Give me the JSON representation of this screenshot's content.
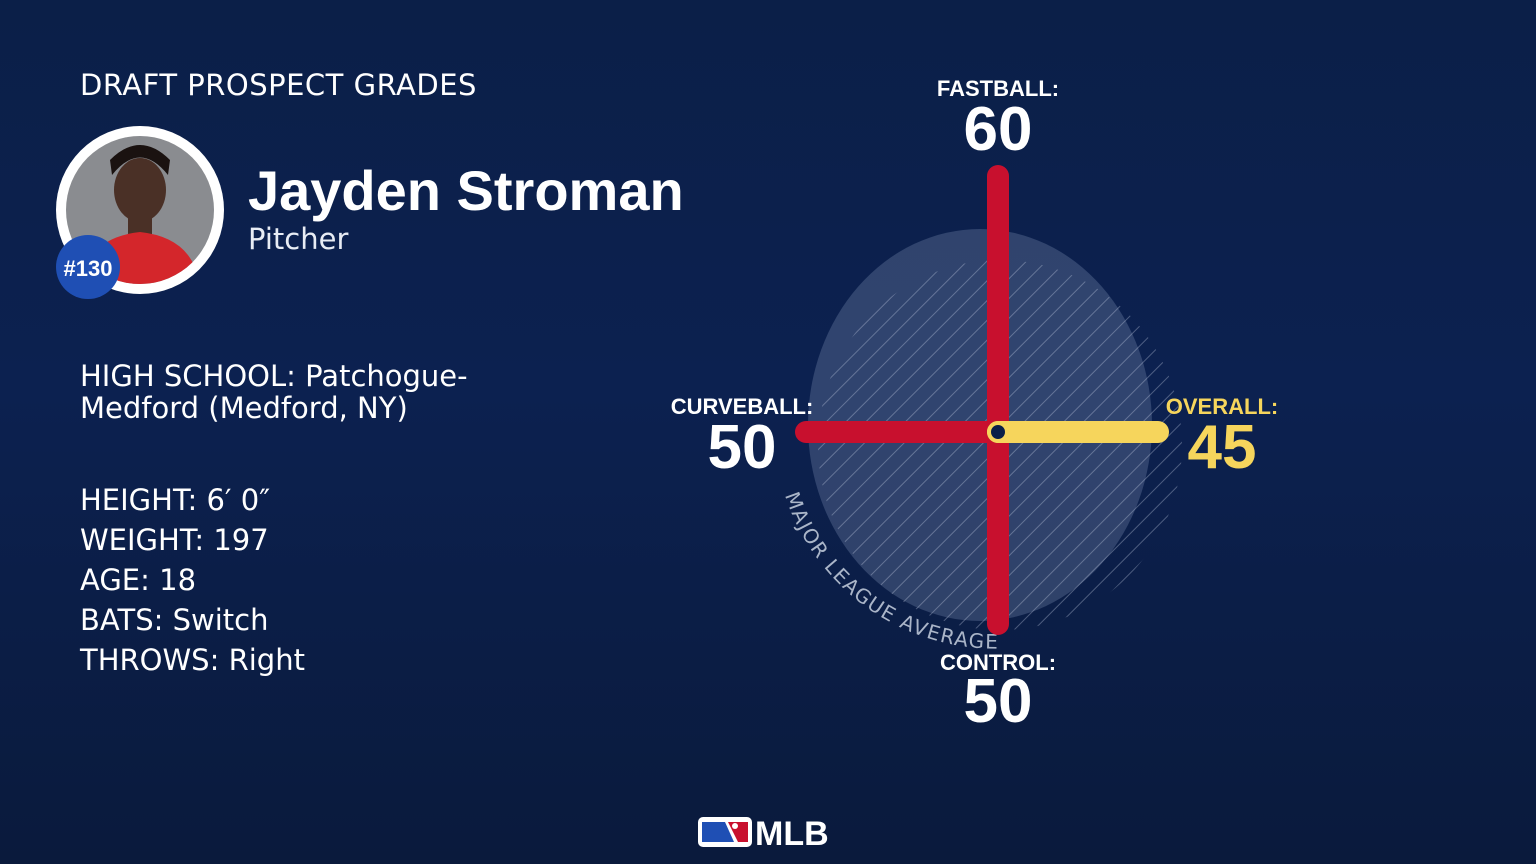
{
  "header": {
    "title": "DRAFT PROSPECT GRADES"
  },
  "player": {
    "name": "Jayden Stroman",
    "position": "Pitcher",
    "rank": "#130",
    "school": {
      "label": "HIGH SCHOOL:",
      "value": "Patchogue-Medford (Medford, NY)"
    },
    "details": [
      {
        "label": "HEIGHT:",
        "value": "6′ 0″"
      },
      {
        "label": "WEIGHT:",
        "value": "197"
      },
      {
        "label": "AGE:",
        "value": "18"
      },
      {
        "label": "BATS:",
        "value": "Switch"
      },
      {
        "label": "THROWS:",
        "value": "Right"
      }
    ]
  },
  "chart_data": {
    "type": "grade-cross",
    "categories": [
      "FASTBALL:",
      "CURVEBALL:",
      "CONTROL:",
      "OVERALL:"
    ],
    "values": [
      60,
      50,
      50,
      45
    ],
    "directions": [
      "up",
      "left",
      "down",
      "right"
    ],
    "colors": [
      "#c8102e",
      "#c8102e",
      "#c8102e",
      "#f6d55c"
    ],
    "text_colors": [
      "#ffffff",
      "#ffffff",
      "#ffffff",
      "#f6d55c"
    ],
    "ylim": [
      20,
      80
    ],
    "baseline_label": "MAJOR LEAGUE AVERAGE"
  },
  "footer": {
    "logo": "MLB"
  }
}
